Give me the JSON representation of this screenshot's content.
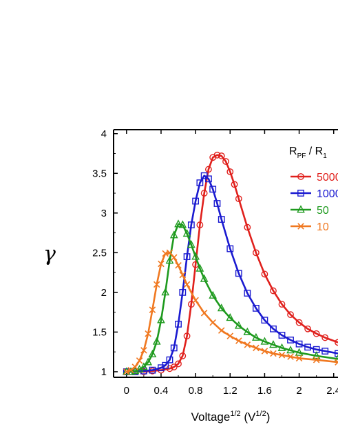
{
  "chart_data": {
    "type": "line",
    "xlabel_main": "Voltage",
    "xlabel_sup": "1/2",
    "xlabel_unit_open": " (V",
    "xlabel_unit_sup": "1/2",
    "xlabel_unit_close": ")",
    "ylabel": "γ",
    "xlim": [
      -0.15,
      2.45
    ],
    "ylim": [
      0.93,
      4.05
    ],
    "x_ticks": [
      0,
      0.4,
      0.8,
      1.2,
      1.6,
      2,
      2.4
    ],
    "x_tick_labels": [
      "0",
      "0.4",
      "0.8",
      "1.2",
      "1.6",
      "2",
      "2.4"
    ],
    "y_ticks": [
      1,
      1.5,
      2,
      2.5,
      3,
      3.5,
      4
    ],
    "y_tick_labels": [
      "1",
      "1.5",
      "2",
      "2.5",
      "3",
      "3.5",
      "4"
    ],
    "grid": false,
    "legend": {
      "position": "top-right",
      "title_main": "R",
      "title_sub1": "PF",
      "title_mid": " / R",
      "title_sub2": "1"
    },
    "series": [
      {
        "name": "5000",
        "color": "#e0201c",
        "marker": "circle",
        "x": [
          0.0,
          0.1,
          0.2,
          0.3,
          0.4,
          0.5,
          0.55,
          0.6,
          0.65,
          0.7,
          0.75,
          0.8,
          0.85,
          0.9,
          0.95,
          1.0,
          1.05,
          1.1,
          1.15,
          1.2,
          1.25,
          1.3,
          1.4,
          1.5,
          1.6,
          1.7,
          1.8,
          1.9,
          2.0,
          2.1,
          2.2,
          2.3,
          2.45
        ],
        "y": [
          1.0,
          1.0,
          1.0,
          1.01,
          1.02,
          1.04,
          1.06,
          1.1,
          1.2,
          1.45,
          1.85,
          2.35,
          2.85,
          3.25,
          3.55,
          3.7,
          3.73,
          3.72,
          3.65,
          3.52,
          3.36,
          3.18,
          2.82,
          2.5,
          2.23,
          2.02,
          1.85,
          1.72,
          1.62,
          1.54,
          1.48,
          1.43,
          1.37
        ]
      },
      {
        "name": "1000",
        "color": "#1a1ad0",
        "marker": "square",
        "x": [
          0.0,
          0.1,
          0.2,
          0.3,
          0.4,
          0.45,
          0.5,
          0.55,
          0.6,
          0.65,
          0.7,
          0.75,
          0.8,
          0.85,
          0.9,
          0.95,
          1.0,
          1.05,
          1.1,
          1.2,
          1.3,
          1.4,
          1.5,
          1.6,
          1.7,
          1.8,
          1.9,
          2.0,
          2.1,
          2.2,
          2.3,
          2.45
        ],
        "y": [
          1.0,
          1.0,
          1.01,
          1.02,
          1.05,
          1.08,
          1.15,
          1.3,
          1.6,
          2.0,
          2.45,
          2.85,
          3.15,
          3.38,
          3.47,
          3.43,
          3.3,
          3.12,
          2.92,
          2.55,
          2.24,
          1.99,
          1.8,
          1.65,
          1.54,
          1.46,
          1.4,
          1.35,
          1.31,
          1.28,
          1.26,
          1.23
        ]
      },
      {
        "name": "50",
        "color": "#1e9a1e",
        "marker": "triangle",
        "x": [
          0.0,
          0.05,
          0.1,
          0.15,
          0.2,
          0.25,
          0.3,
          0.35,
          0.4,
          0.45,
          0.5,
          0.55,
          0.6,
          0.65,
          0.7,
          0.75,
          0.8,
          0.85,
          0.9,
          1.0,
          1.1,
          1.2,
          1.3,
          1.4,
          1.5,
          1.6,
          1.7,
          1.8,
          1.9,
          2.0,
          2.2,
          2.45
        ],
        "y": [
          1.0,
          1.0,
          1.01,
          1.03,
          1.06,
          1.12,
          1.22,
          1.38,
          1.65,
          2.0,
          2.4,
          2.72,
          2.86,
          2.85,
          2.74,
          2.6,
          2.45,
          2.3,
          2.17,
          1.96,
          1.8,
          1.68,
          1.58,
          1.5,
          1.43,
          1.38,
          1.34,
          1.3,
          1.27,
          1.24,
          1.2,
          1.16
        ]
      },
      {
        "name": "10",
        "color": "#f07820",
        "marker": "cross",
        "x": [
          0.0,
          0.05,
          0.1,
          0.15,
          0.2,
          0.25,
          0.3,
          0.35,
          0.4,
          0.45,
          0.5,
          0.55,
          0.6,
          0.65,
          0.7,
          0.8,
          0.9,
          1.0,
          1.1,
          1.2,
          1.3,
          1.4,
          1.5,
          1.6,
          1.7,
          1.8,
          1.9,
          2.0,
          2.2,
          2.45
        ],
        "y": [
          1.0,
          1.02,
          1.06,
          1.14,
          1.27,
          1.48,
          1.78,
          2.1,
          2.36,
          2.49,
          2.5,
          2.44,
          2.34,
          2.22,
          2.1,
          1.9,
          1.74,
          1.62,
          1.52,
          1.45,
          1.39,
          1.34,
          1.3,
          1.26,
          1.23,
          1.21,
          1.19,
          1.17,
          1.15,
          1.12
        ]
      }
    ]
  }
}
